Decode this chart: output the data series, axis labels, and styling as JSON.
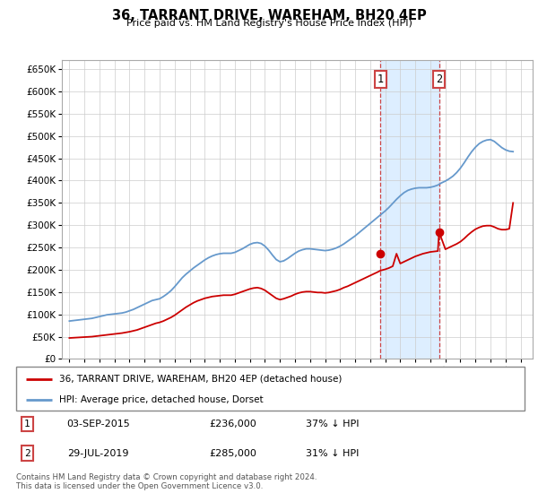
{
  "title": "36, TARRANT DRIVE, WAREHAM, BH20 4EP",
  "subtitle": "Price paid vs. HM Land Registry's House Price Index (HPI)",
  "legend_line1": "36, TARRANT DRIVE, WAREHAM, BH20 4EP (detached house)",
  "legend_line2": "HPI: Average price, detached house, Dorset",
  "footer": "Contains HM Land Registry data © Crown copyright and database right 2024.\nThis data is licensed under the Open Government Licence v3.0.",
  "table": [
    {
      "num": "1",
      "date": "03-SEP-2015",
      "price": "£236,000",
      "note": "37% ↓ HPI"
    },
    {
      "num": "2",
      "date": "29-JUL-2019",
      "price": "£285,000",
      "note": "31% ↓ HPI"
    }
  ],
  "marker1_x": 2015.67,
  "marker1_y": 236000,
  "marker2_x": 2019.58,
  "marker2_y": 285000,
  "shaded_x1": 2015.67,
  "shaded_x2": 2019.58,
  "red_color": "#cc0000",
  "blue_color": "#6699cc",
  "shaded_color": "#ddeeff",
  "ylim": [
    0,
    670000
  ],
  "yticks": [
    0,
    50000,
    100000,
    150000,
    200000,
    250000,
    300000,
    350000,
    400000,
    450000,
    500000,
    550000,
    600000,
    650000
  ],
  "xlim_left": 1994.5,
  "xlim_right": 2025.8,
  "hpi_years": [
    1995.0,
    1995.25,
    1995.5,
    1995.75,
    1996.0,
    1996.25,
    1996.5,
    1996.75,
    1997.0,
    1997.25,
    1997.5,
    1997.75,
    1998.0,
    1998.25,
    1998.5,
    1998.75,
    1999.0,
    1999.25,
    1999.5,
    1999.75,
    2000.0,
    2000.25,
    2000.5,
    2000.75,
    2001.0,
    2001.25,
    2001.5,
    2001.75,
    2002.0,
    2002.25,
    2002.5,
    2002.75,
    2003.0,
    2003.25,
    2003.5,
    2003.75,
    2004.0,
    2004.25,
    2004.5,
    2004.75,
    2005.0,
    2005.25,
    2005.5,
    2005.75,
    2006.0,
    2006.25,
    2006.5,
    2006.75,
    2007.0,
    2007.25,
    2007.5,
    2007.75,
    2008.0,
    2008.25,
    2008.5,
    2008.75,
    2009.0,
    2009.25,
    2009.5,
    2009.75,
    2010.0,
    2010.25,
    2010.5,
    2010.75,
    2011.0,
    2011.25,
    2011.5,
    2011.75,
    2012.0,
    2012.25,
    2012.5,
    2012.75,
    2013.0,
    2013.25,
    2013.5,
    2013.75,
    2014.0,
    2014.25,
    2014.5,
    2014.75,
    2015.0,
    2015.25,
    2015.5,
    2015.75,
    2016.0,
    2016.25,
    2016.5,
    2016.75,
    2017.0,
    2017.25,
    2017.5,
    2017.75,
    2018.0,
    2018.25,
    2018.5,
    2018.75,
    2019.0,
    2019.25,
    2019.5,
    2019.75,
    2020.0,
    2020.25,
    2020.5,
    2020.75,
    2021.0,
    2021.25,
    2021.5,
    2021.75,
    2022.0,
    2022.25,
    2022.5,
    2022.75,
    2023.0,
    2023.25,
    2023.5,
    2023.75,
    2024.0,
    2024.25,
    2024.5
  ],
  "hpi_values": [
    85000,
    86000,
    87000,
    88000,
    89000,
    90000,
    91000,
    93000,
    95000,
    97000,
    99000,
    100000,
    101000,
    102000,
    103000,
    105000,
    108000,
    111000,
    115000,
    119000,
    123000,
    127000,
    131000,
    133000,
    135000,
    140000,
    146000,
    153000,
    162000,
    172000,
    182000,
    190000,
    197000,
    204000,
    210000,
    216000,
    222000,
    227000,
    231000,
    234000,
    236000,
    237000,
    237000,
    237000,
    239000,
    243000,
    247000,
    252000,
    257000,
    260000,
    261000,
    259000,
    253000,
    244000,
    233000,
    223000,
    218000,
    220000,
    225000,
    231000,
    237000,
    242000,
    245000,
    247000,
    247000,
    246000,
    245000,
    244000,
    243000,
    244000,
    246000,
    249000,
    253000,
    258000,
    264000,
    270000,
    276000,
    283000,
    290000,
    297000,
    304000,
    311000,
    318000,
    325000,
    332000,
    340000,
    349000,
    358000,
    366000,
    373000,
    378000,
    381000,
    383000,
    384000,
    384000,
    384000,
    385000,
    387000,
    390000,
    395000,
    399000,
    404000,
    410000,
    418000,
    428000,
    440000,
    453000,
    465000,
    475000,
    483000,
    488000,
    491000,
    492000,
    488000,
    481000,
    474000,
    469000,
    466000,
    465000
  ],
  "house_years": [
    1995.0,
    1995.25,
    1995.5,
    1995.75,
    1996.0,
    1996.25,
    1996.5,
    1996.75,
    1997.0,
    1997.25,
    1997.5,
    1997.75,
    1998.0,
    1998.25,
    1998.5,
    1998.75,
    1999.0,
    1999.25,
    1999.5,
    1999.75,
    2000.0,
    2000.25,
    2000.5,
    2000.75,
    2001.0,
    2001.25,
    2001.5,
    2001.75,
    2002.0,
    2002.25,
    2002.5,
    2002.75,
    2003.0,
    2003.25,
    2003.5,
    2003.75,
    2004.0,
    2004.25,
    2004.5,
    2004.75,
    2005.0,
    2005.25,
    2005.5,
    2005.75,
    2006.0,
    2006.25,
    2006.5,
    2006.75,
    2007.0,
    2007.25,
    2007.5,
    2007.75,
    2008.0,
    2008.25,
    2008.5,
    2008.75,
    2009.0,
    2009.25,
    2009.5,
    2009.75,
    2010.0,
    2010.25,
    2010.5,
    2010.75,
    2011.0,
    2011.25,
    2011.5,
    2011.75,
    2012.0,
    2012.25,
    2012.5,
    2012.75,
    2013.0,
    2013.25,
    2013.5,
    2013.75,
    2014.0,
    2014.25,
    2014.5,
    2014.75,
    2015.0,
    2015.25,
    2015.5,
    2015.67,
    2016.0,
    2016.25,
    2016.5,
    2016.75,
    2017.0,
    2017.25,
    2017.5,
    2017.75,
    2018.0,
    2018.25,
    2018.5,
    2018.75,
    2019.0,
    2019.25,
    2019.5,
    2019.58,
    2020.0,
    2020.25,
    2020.5,
    2020.75,
    2021.0,
    2021.25,
    2021.5,
    2021.75,
    2022.0,
    2022.25,
    2022.5,
    2022.75,
    2023.0,
    2023.25,
    2023.5,
    2023.75,
    2024.0,
    2024.25,
    2024.5
  ],
  "house_values": [
    47000,
    47500,
    48000,
    48500,
    49000,
    49500,
    50000,
    51000,
    52000,
    53000,
    54000,
    55000,
    56000,
    57000,
    58000,
    59500,
    61000,
    63000,
    65000,
    68000,
    71000,
    74000,
    77000,
    80000,
    82000,
    85000,
    89000,
    93000,
    98000,
    104000,
    110000,
    116000,
    121000,
    126000,
    130000,
    133000,
    136000,
    138000,
    140000,
    141000,
    142000,
    143000,
    143000,
    143000,
    145000,
    148000,
    151000,
    154000,
    157000,
    159000,
    160000,
    158000,
    154000,
    148000,
    142000,
    136000,
    133000,
    135000,
    138000,
    141000,
    145000,
    148000,
    150000,
    151000,
    151000,
    150000,
    149000,
    149000,
    148000,
    149000,
    151000,
    153000,
    156000,
    160000,
    163000,
    167000,
    171000,
    175000,
    179000,
    183000,
    187000,
    191000,
    195000,
    198000,
    201000,
    204000,
    208000,
    236000,
    214000,
    218000,
    222000,
    226000,
    230000,
    233000,
    236000,
    238000,
    240000,
    241000,
    242000,
    285000,
    246000,
    250000,
    254000,
    258000,
    263000,
    270000,
    278000,
    285000,
    291000,
    295000,
    298000,
    299000,
    299000,
    296000,
    292000,
    290000,
    290000,
    292000,
    350000
  ]
}
